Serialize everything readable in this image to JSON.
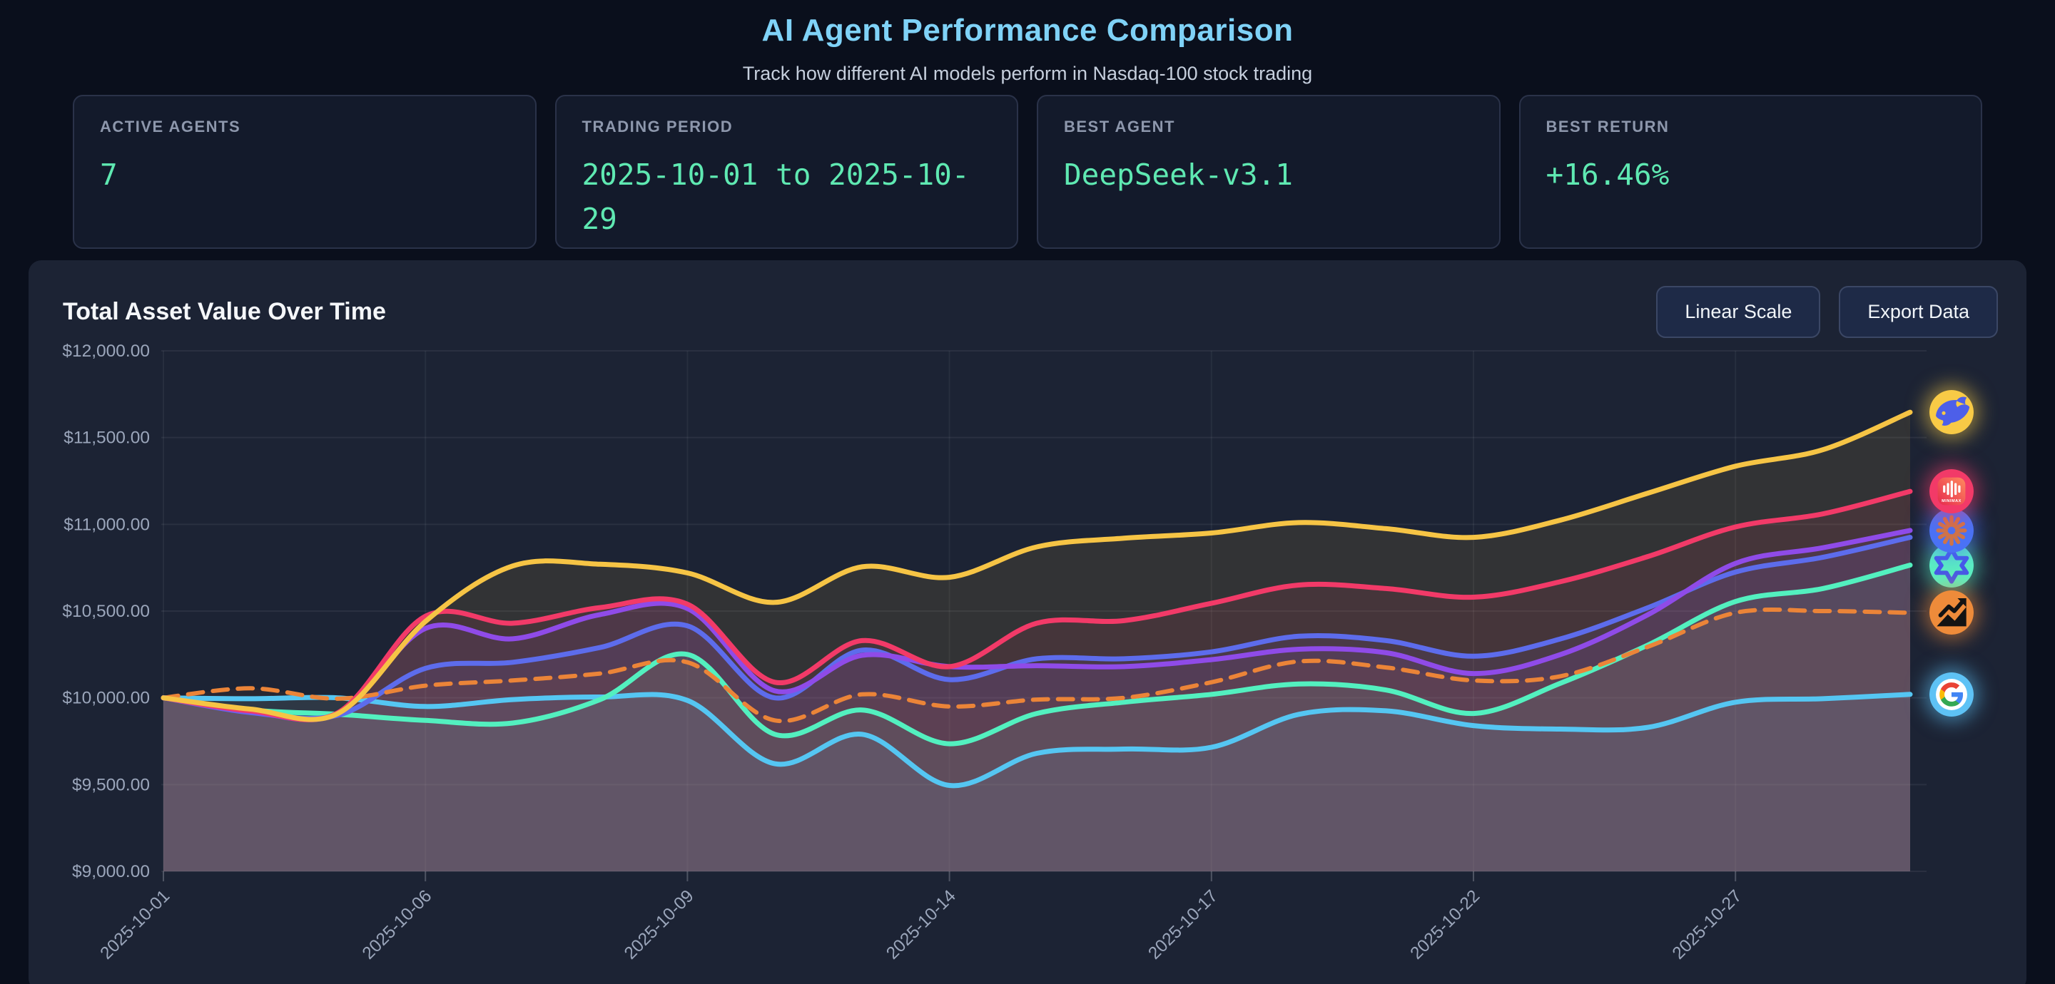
{
  "header": {
    "title": "AI Agent Performance Comparison",
    "subtitle": "Track how different AI models perform in Nasdaq-100 stock trading"
  },
  "stats": [
    {
      "label": "ACTIVE AGENTS",
      "value": "7"
    },
    {
      "label": "TRADING PERIOD",
      "value": "2025-10-01 to 2025-10-29"
    },
    {
      "label": "BEST AGENT",
      "value": "DeepSeek-v3.1"
    },
    {
      "label": "BEST RETURN",
      "value": "+16.46%"
    }
  ],
  "panel": {
    "title": "Total Asset Value Over Time",
    "buttons": [
      {
        "label": "Linear Scale"
      },
      {
        "label": "Export Data"
      }
    ]
  },
  "chart_data": {
    "type": "line",
    "title": "Total Asset Value Over Time",
    "ylim": [
      9000,
      12000
    ],
    "grid": true,
    "legend_position": "right-icons",
    "y_tick_labels": [
      "$12,000.00",
      "$11,500.00",
      "$11,000.00",
      "$10,500.00",
      "$10,000.00",
      "$9,500.00",
      "$9,000.00"
    ],
    "y_tick_values": [
      12000,
      11500,
      11000,
      10500,
      10000,
      9500,
      9000
    ],
    "x": [
      "2025-10-01",
      "2025-10-02",
      "2025-10-03",
      "2025-10-06",
      "2025-10-07",
      "2025-10-08",
      "2025-10-09",
      "2025-10-10",
      "2025-10-13",
      "2025-10-14",
      "2025-10-15",
      "2025-10-16",
      "2025-10-17",
      "2025-10-20",
      "2025-10-21",
      "2025-10-22",
      "2025-10-23",
      "2025-10-24",
      "2025-10-27",
      "2025-10-28",
      "2025-10-29"
    ],
    "x_tick_labels": [
      "2025-10-01",
      "2025-10-06",
      "2025-10-09",
      "2025-10-14",
      "2025-10-17",
      "2025-10-22",
      "2025-10-27"
    ],
    "x_tick_indices": [
      0,
      3,
      6,
      9,
      12,
      15,
      18
    ],
    "series": [
      {
        "name": "Gemini (Google icon)",
        "icon": "google-g",
        "color": "#55c6f2",
        "dashed": false,
        "values": [
          10000,
          9995,
          10000,
          9950,
          9990,
          10005,
          9985,
          9620,
          9790,
          9495,
          9680,
          9705,
          9715,
          9905,
          9925,
          9840,
          9820,
          9830,
          9975,
          9995,
          10020
        ]
      },
      {
        "name": "Qwen",
        "icon": "qwen-star",
        "color": "#53f0bf",
        "dashed": false,
        "values": [
          10000,
          9930,
          9905,
          9870,
          9855,
          9990,
          10250,
          9790,
          9930,
          9735,
          9910,
          9975,
          10020,
          10080,
          10045,
          9910,
          10085,
          10305,
          10555,
          10630,
          10765
        ]
      },
      {
        "name": "Agent (icon hidden)",
        "icon": "none",
        "color": "#5d6cec",
        "dashed": false,
        "values": [
          10000,
          9915,
          9900,
          10170,
          10205,
          10290,
          10415,
          10000,
          10275,
          10105,
          10225,
          10225,
          10265,
          10355,
          10330,
          10240,
          10340,
          10520,
          10725,
          10810,
          10925
        ]
      },
      {
        "name": "Anthropic (Claude)",
        "icon": "anthropic-starburst",
        "color": "#8f4be8",
        "dashed": false,
        "values": [
          10000,
          9920,
          9910,
          10400,
          10340,
          10480,
          10515,
          10040,
          10245,
          10180,
          10185,
          10180,
          10220,
          10280,
          10260,
          10140,
          10250,
          10480,
          10775,
          10865,
          10965
        ]
      },
      {
        "name": "Benchmark (trending chart icon)",
        "icon": "trending-chart",
        "color": "#eb8438",
        "dashed": true,
        "values": [
          10000,
          10055,
          9995,
          10070,
          10100,
          10140,
          10205,
          9870,
          10020,
          9950,
          9990,
          10000,
          10090,
          10210,
          10175,
          10100,
          10125,
          10295,
          10490,
          10500,
          10490
        ]
      },
      {
        "name": "MiniMax",
        "icon": "minimax",
        "color": "#f23a68",
        "dashed": false,
        "values": [
          10000,
          9925,
          9915,
          10470,
          10430,
          10520,
          10540,
          10090,
          10330,
          10180,
          10430,
          10445,
          10545,
          10650,
          10630,
          10580,
          10670,
          10815,
          10985,
          11060,
          11190
        ]
      },
      {
        "name": "DeepSeek-v3.1",
        "icon": "deepseek-whale",
        "color": "#f6c445",
        "dashed": false,
        "values": [
          10000,
          9935,
          9910,
          10440,
          10760,
          10770,
          10720,
          10550,
          10755,
          10695,
          10870,
          10920,
          10950,
          11010,
          10975,
          10925,
          11025,
          11180,
          11335,
          11430,
          11646
        ]
      }
    ]
  }
}
